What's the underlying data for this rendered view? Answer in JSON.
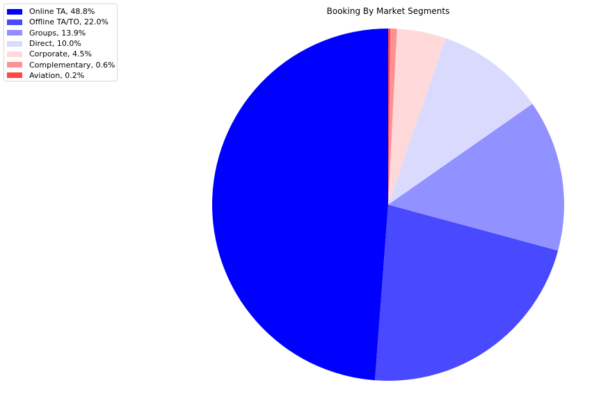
{
  "chart_data": {
    "type": "pie",
    "title": "Booking By Market Segments",
    "legend_position": "top-left",
    "slices": [
      {
        "label": "Online TA, 48.8%",
        "name": "Online TA",
        "value": 48.8,
        "color": "#0000ff"
      },
      {
        "label": "Offline TA/TO, 22.0%",
        "name": "Offline TA/TO",
        "value": 22.0,
        "color": "#4949ff"
      },
      {
        "label": "Groups, 13.9%",
        "name": "Groups",
        "value": 13.9,
        "color": "#9191ff"
      },
      {
        "label": "Direct, 10.0%",
        "name": "Direct",
        "value": 10.0,
        "color": "#dadaff"
      },
      {
        "label": "Corporate, 4.5%",
        "name": "Corporate",
        "value": 4.5,
        "color": "#ffd9d9"
      },
      {
        "label": "Complementary, 0.6%",
        "name": "Complementary",
        "value": 0.6,
        "color": "#ff9191"
      },
      {
        "label": "Aviation, 0.2%",
        "name": "Aviation",
        "value": 0.2,
        "color": "#ff4949"
      }
    ]
  }
}
